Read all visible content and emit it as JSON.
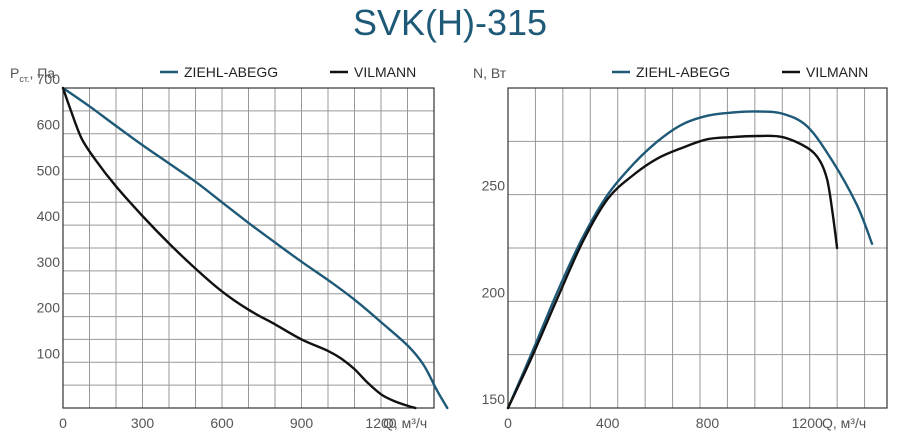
{
  "title": "SVK(H)-315",
  "colors": {
    "ziehl": "#1e5a78",
    "vilmann": "#111111",
    "grid": "#999999",
    "frame": "#333333"
  },
  "chart_data": [
    {
      "type": "line",
      "ylabel_main": "P",
      "ylabel_sub": "ст.",
      "ylabel_unit": ", Па",
      "xlabel": "Q, м³/ч",
      "xlim": [
        0,
        1400
      ],
      "ylim": [
        0,
        700
      ],
      "xticks": [
        "0",
        "300",
        "600",
        "900",
        "1200"
      ],
      "yticks": [
        "100",
        "200",
        "300",
        "400",
        "500",
        "600",
        "700"
      ],
      "grid": true,
      "legend_position": "top",
      "series": [
        {
          "name": "ZIEHL-ABEGG",
          "x": [
            0,
            100,
            200,
            300,
            400,
            500,
            600,
            700,
            800,
            900,
            1000,
            1100,
            1200,
            1300,
            1360,
            1410,
            1450
          ],
          "y": [
            700,
            660,
            617,
            575,
            535,
            495,
            450,
            405,
            362,
            320,
            280,
            237,
            188,
            137,
            95,
            40,
            0
          ]
        },
        {
          "name": "VILMANN",
          "x": [
            0,
            30,
            70,
            120,
            200,
            300,
            400,
            500,
            600,
            700,
            800,
            900,
            1000,
            1050,
            1100,
            1150,
            1200,
            1250,
            1300,
            1330
          ],
          "y": [
            700,
            650,
            590,
            545,
            485,
            420,
            360,
            305,
            255,
            215,
            183,
            150,
            125,
            108,
            85,
            55,
            30,
            15,
            5,
            0
          ]
        }
      ]
    },
    {
      "type": "line",
      "ylabel": "N, Вт",
      "xlabel": "Q, м³/ч",
      "xlim": [
        0,
        1520
      ],
      "ylim": [
        150,
        300
      ],
      "xticks": [
        "0",
        "400",
        "800",
        "1200"
      ],
      "yticks": [
        "150",
        "200",
        "250"
      ],
      "grid": true,
      "legend_position": "top",
      "series": [
        {
          "name": "ZIEHL-ABEGG",
          "x": [
            0,
            100,
            200,
            300,
            400,
            500,
            600,
            700,
            800,
            900,
            1000,
            1100,
            1200,
            1300,
            1400,
            1460
          ],
          "y": [
            150,
            177,
            205,
            230,
            250,
            264,
            275,
            283,
            287,
            288.5,
            289,
            288,
            282,
            266,
            245,
            227
          ]
        },
        {
          "name": "VILMANN",
          "x": [
            0,
            100,
            200,
            300,
            400,
            500,
            600,
            700,
            800,
            900,
            1000,
            1100,
            1200,
            1250,
            1280,
            1300,
            1320
          ],
          "y": [
            150,
            175,
            202,
            228,
            248,
            259,
            267,
            272,
            276,
            277,
            277.5,
            277,
            272,
            266,
            257,
            243,
            225
          ]
        }
      ]
    }
  ]
}
